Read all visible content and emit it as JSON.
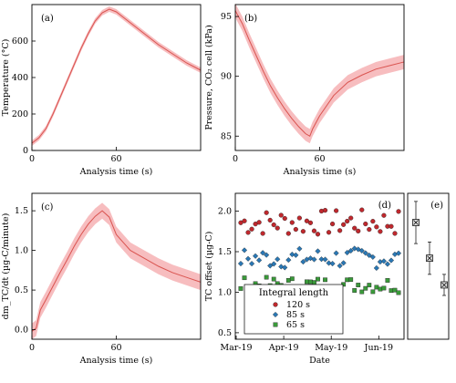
{
  "colors": {
    "line": "#d9534f",
    "band": "#f4a7a9",
    "series_120": "#c0282d",
    "series_85": "#2a78b5",
    "series_65": "#3a9a3a"
  },
  "chart_data": [
    {
      "panel": "(a)",
      "type": "line",
      "ylabel": "Temperature (°C)",
      "xlabel": "Analysis time (s)",
      "xlim": [
        0,
        120
      ],
      "ylim": [
        0,
        800
      ],
      "xticks": [
        0,
        60
      ],
      "yticks": [
        0,
        200,
        400,
        600
      ],
      "x": [
        0,
        5,
        10,
        15,
        20,
        25,
        30,
        35,
        40,
        45,
        50,
        55,
        60,
        65,
        70,
        80,
        90,
        100,
        110,
        120
      ],
      "y": [
        40,
        70,
        120,
        200,
        290,
        380,
        470,
        560,
        640,
        710,
        755,
        775,
        760,
        730,
        700,
        640,
        580,
        530,
        480,
        440
      ],
      "band": 15
    },
    {
      "panel": "(b)",
      "type": "line",
      "ylabel": "Pressure, CO₂ cell (kPa)",
      "xlabel": "Analysis time (s)",
      "xlim": [
        0,
        120
      ],
      "ylim": [
        83.8,
        96
      ],
      "xticks": [
        0,
        60
      ],
      "yticks": [
        85,
        90,
        95
      ],
      "x": [
        0,
        5,
        10,
        15,
        20,
        25,
        30,
        35,
        40,
        45,
        50,
        53,
        55,
        60,
        70,
        80,
        90,
        100,
        110,
        120
      ],
      "y": [
        95.5,
        94.4,
        93.0,
        91.7,
        90.4,
        89.2,
        88.2,
        87.3,
        86.5,
        85.8,
        85.2,
        85.0,
        85.6,
        86.7,
        88.4,
        89.5,
        90.1,
        90.6,
        90.9,
        91.2
      ],
      "band": 0.6
    },
    {
      "panel": "(c)",
      "type": "line",
      "ylabel": "dm_TC/dt (µg-C/minute)",
      "xlabel": "Analysis time (s)",
      "xlim": [
        0,
        120
      ],
      "ylim": [
        -0.12,
        1.72
      ],
      "xticks": [
        0,
        60
      ],
      "yticks": [
        0.0,
        0.5,
        1.0,
        1.5
      ],
      "x": [
        0,
        3,
        6,
        10,
        15,
        20,
        25,
        30,
        35,
        40,
        45,
        50,
        55,
        60,
        65,
        70,
        80,
        90,
        100,
        110,
        120
      ],
      "y": [
        -0.02,
        0.02,
        0.25,
        0.38,
        0.55,
        0.72,
        0.88,
        1.05,
        1.2,
        1.33,
        1.43,
        1.5,
        1.42,
        1.2,
        1.1,
        1.0,
        0.9,
        0.8,
        0.72,
        0.66,
        0.6
      ],
      "band": 0.1
    },
    {
      "panel": "(d)",
      "type": "scatter",
      "ylabel": "TC offset (µg-C)",
      "xlabel": "Date",
      "ylim": [
        0.42,
        2.22
      ],
      "yticks": [
        0.5,
        1.0,
        1.5,
        2.0
      ],
      "xticklabels": [
        "Mar-19",
        "Apr-19",
        "May-19",
        "Jun-19"
      ],
      "legend_title": "Integral length",
      "legend_position": "bottom-left",
      "series": [
        {
          "name": "120 s",
          "marker": "circle",
          "mean": 1.86,
          "spread": 0.2
        },
        {
          "name": "85 s",
          "marker": "diamond",
          "mean": 1.42,
          "spread": 0.16
        },
        {
          "name": "65 s",
          "marker": "square",
          "mean": 1.09,
          "spread": 0.12
        }
      ]
    },
    {
      "panel": "(e)",
      "type": "scatter",
      "ylim": [
        0.42,
        2.22
      ],
      "series": [
        {
          "name": "120 s",
          "mean": 1.86,
          "err": 0.26
        },
        {
          "name": "85 s",
          "mean": 1.42,
          "err": 0.2
        },
        {
          "name": "65 s",
          "mean": 1.09,
          "err": 0.13
        }
      ]
    }
  ]
}
